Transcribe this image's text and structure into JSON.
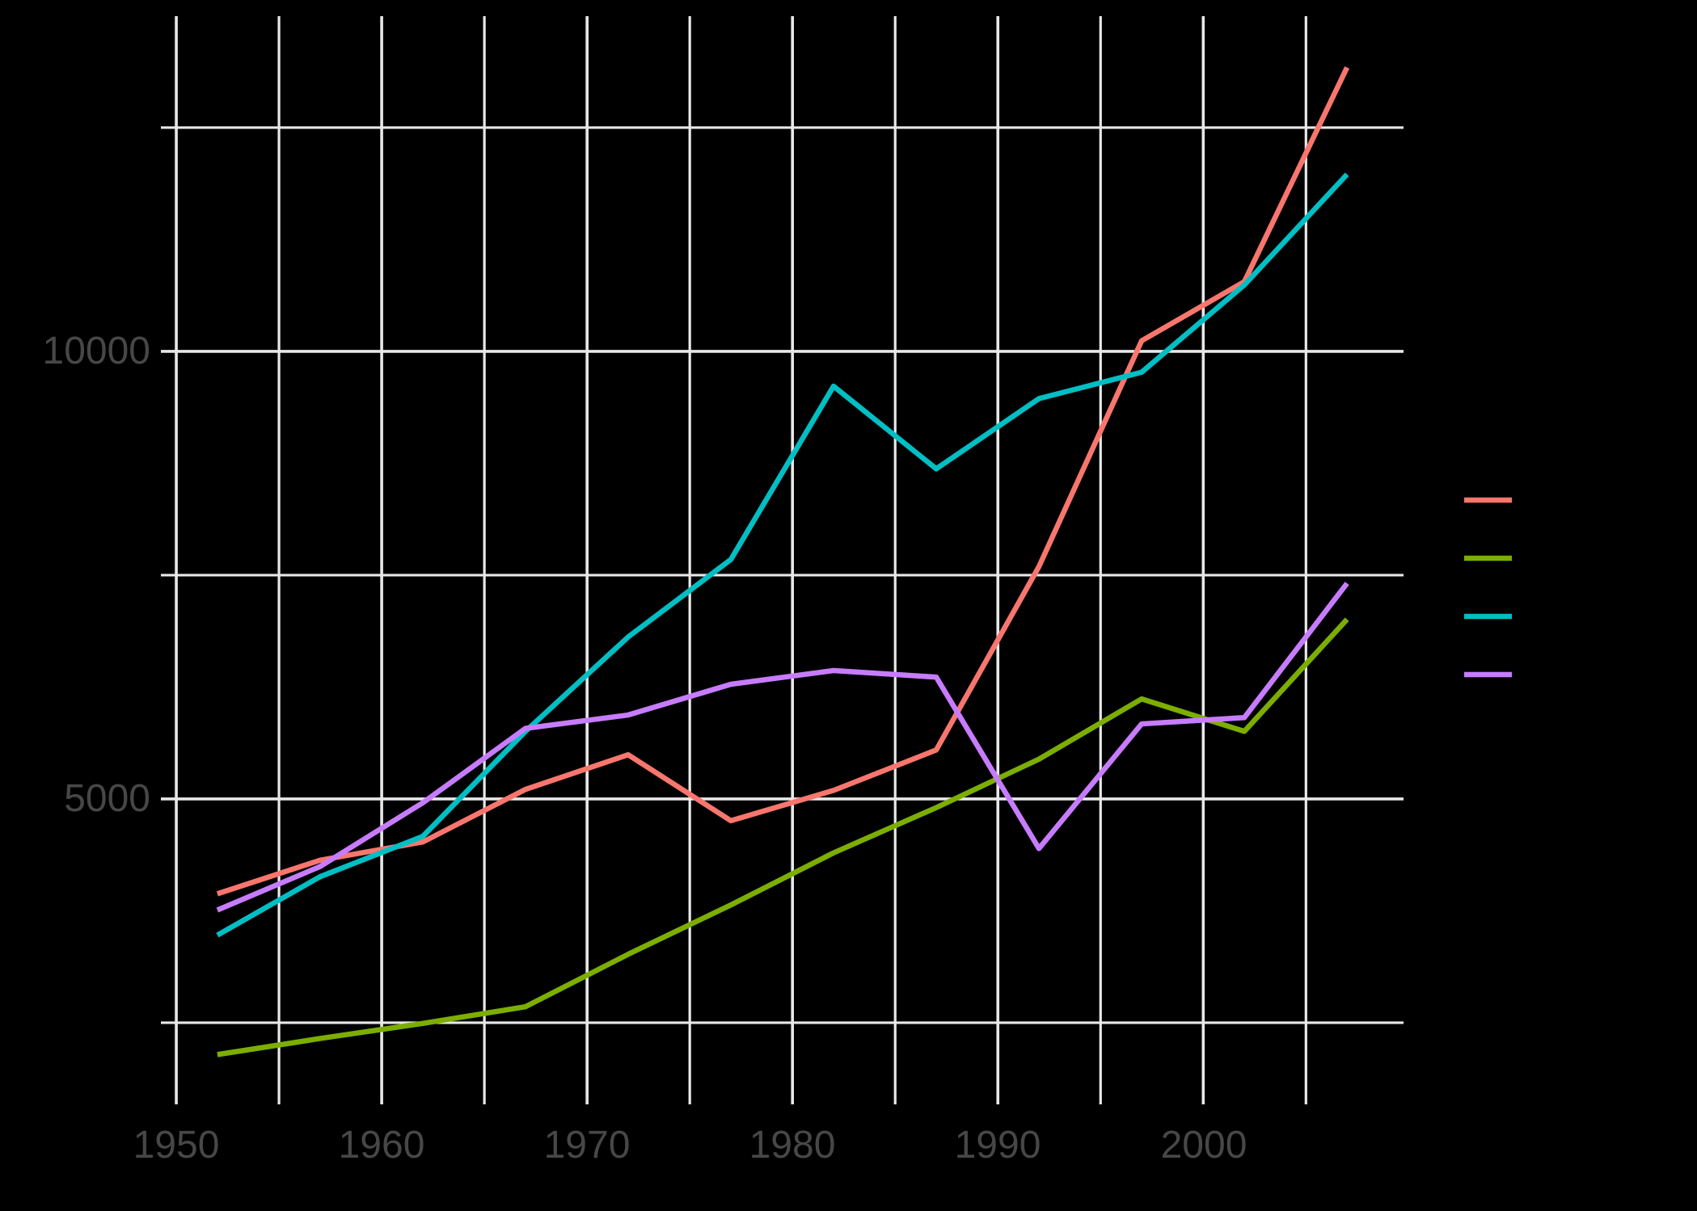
{
  "figure": {
    "background_color": "#000000",
    "panel_background": "transparent",
    "grid_color": "#E8E8E8",
    "axis_text_color": "#474747"
  },
  "axes": {
    "x_tick_labels": [
      "1950",
      "1960",
      "1970",
      "1980",
      "1990",
      "2000"
    ],
    "y_tick_labels": [
      "5000",
      "10000"
    ]
  },
  "legend": {
    "position": "right",
    "keys": [
      {
        "swatch": "line",
        "color": "#F8766D",
        "label": ""
      },
      {
        "swatch": "line",
        "color": "#7CAE00",
        "label": ""
      },
      {
        "swatch": "line",
        "color": "#00BFC4",
        "label": ""
      },
      {
        "swatch": "line",
        "color": "#C77CFF",
        "label": ""
      }
    ]
  },
  "chart_data": {
    "type": "line",
    "title": "",
    "xlabel": "",
    "ylabel": "",
    "x": [
      1952,
      1957,
      1962,
      1967,
      1972,
      1977,
      1982,
      1987,
      1992,
      1997,
      2002,
      2007
    ],
    "series": [
      {
        "name": "red-series",
        "color": "#F8766D",
        "values": [
          3939.98,
          4315.62,
          4519.09,
          5106.65,
          5494.02,
          4756.76,
          5095.67,
          5547.06,
          7596.13,
          10118.05,
          10778.78,
          13171.64
        ]
      },
      {
        "name": "olive-green-series",
        "color": "#7CAE00",
        "values": [
          2144.12,
          2323.81,
          2492.35,
          2678.73,
          3264.66,
          3815.81,
          4397.58,
          4903.22,
          5444.65,
          6117.36,
          5755.26,
          7006.58
        ]
      },
      {
        "name": "teal-series",
        "color": "#00BFC4",
        "values": [
          3478.13,
          4131.55,
          4581.61,
          5754.73,
          6809.41,
          7674.93,
          9611.15,
          8688.16,
          9472.38,
          9767.3,
          10742.44,
          11977.57
        ]
      },
      {
        "name": "purple-series",
        "color": "#C77CFF",
        "values": [
          3758.52,
          4245.26,
          4957.04,
          5788.09,
          5937.83,
          6281.29,
          6434.5,
          6360.94,
          4446.38,
          5838.35,
          5909.02,
          7408.91
        ]
      }
    ],
    "xlim": [
      1949.25,
      2009.75
    ],
    "ylim": [
      1588,
      13745
    ],
    "x_major_ticks": [
      1950,
      1960,
      1970,
      1980,
      1990,
      2000
    ],
    "x_minor_ticks": [
      1955,
      1965,
      1975,
      1985,
      1995,
      2005
    ],
    "y_major_ticks": [
      5000,
      10000
    ],
    "y_minor_ticks": [
      2500,
      7500,
      12500
    ],
    "grid": true,
    "legend_position": "right"
  }
}
